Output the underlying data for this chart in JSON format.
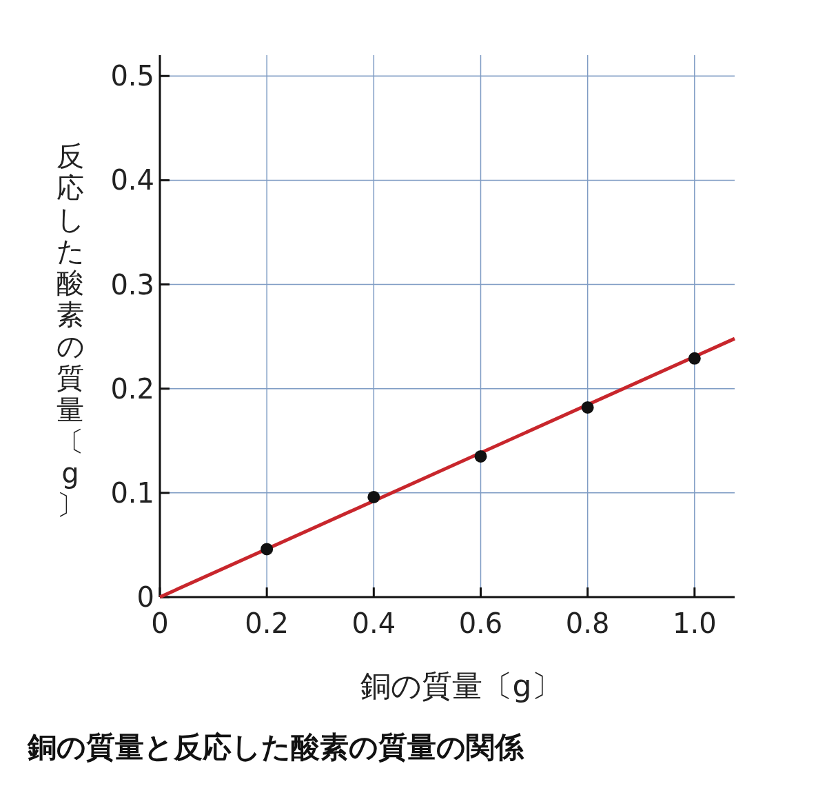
{
  "chart_data": {
    "type": "scatter",
    "title": "銅の質量と反応した酸素の質量の関係",
    "xlabel": "銅の質量〔g〕",
    "ylabel": "反応した酸素の質量〔g〕",
    "xlim": [
      0,
      1.075
    ],
    "ylim": [
      0,
      0.52
    ],
    "xticks": [
      0,
      0.2,
      0.4,
      0.6,
      0.8,
      {
        "value": 1,
        "label": "1.0"
      }
    ],
    "yticks": [
      0,
      0.1,
      0.2,
      0.3,
      0.4,
      0.5
    ],
    "grid": true,
    "series": [
      {
        "type": "line",
        "color": "#c8262c",
        "x": [
          0,
          1.075
        ],
        "values": [
          0,
          0.248
        ],
        "marker": "none"
      },
      {
        "type": "scatter",
        "color": "#111111",
        "x": [
          0.2,
          0.4,
          0.6,
          0.8,
          1.0
        ],
        "values": [
          0.046,
          0.096,
          0.135,
          0.182,
          0.229
        ],
        "marker": "circle"
      }
    ]
  }
}
